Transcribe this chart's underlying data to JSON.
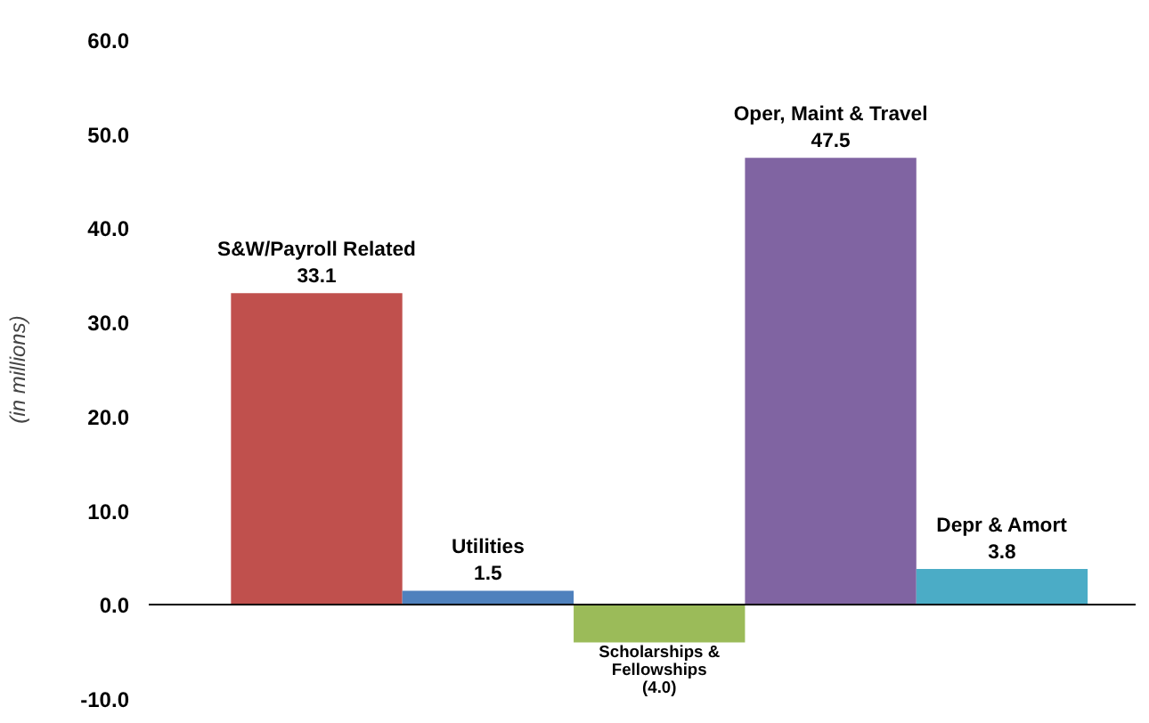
{
  "chart_data": {
    "type": "bar",
    "ylabel": "(in millions)",
    "categories": [
      "S&W/Payroll Related",
      "Utilities",
      "Scholarships & Fellowships",
      "Oper, Maint & Travel",
      "Depr & Amort"
    ],
    "values": [
      33.1,
      1.5,
      -4.0,
      47.5,
      3.8
    ],
    "colors": [
      "#c0504d",
      "#4f81bd",
      "#9bbb59",
      "#8064a2",
      "#4bacc6"
    ],
    "value_labels": [
      "33.1",
      "1.5",
      "(4.0)",
      "47.5",
      "3.8"
    ],
    "ylim": [
      -10,
      60
    ],
    "yticks": [
      {
        "value": -10,
        "label": "-10.0"
      },
      {
        "value": 0,
        "label": "0.0"
      },
      {
        "value": 10,
        "label": "10.0"
      },
      {
        "value": 20,
        "label": "20.0"
      },
      {
        "value": 30,
        "label": "30.0"
      },
      {
        "value": 40,
        "label": "40.0"
      },
      {
        "value": 50,
        "label": "50.0"
      },
      {
        "value": 60,
        "label": "60.0"
      }
    ],
    "tick_labels": "y"
  }
}
